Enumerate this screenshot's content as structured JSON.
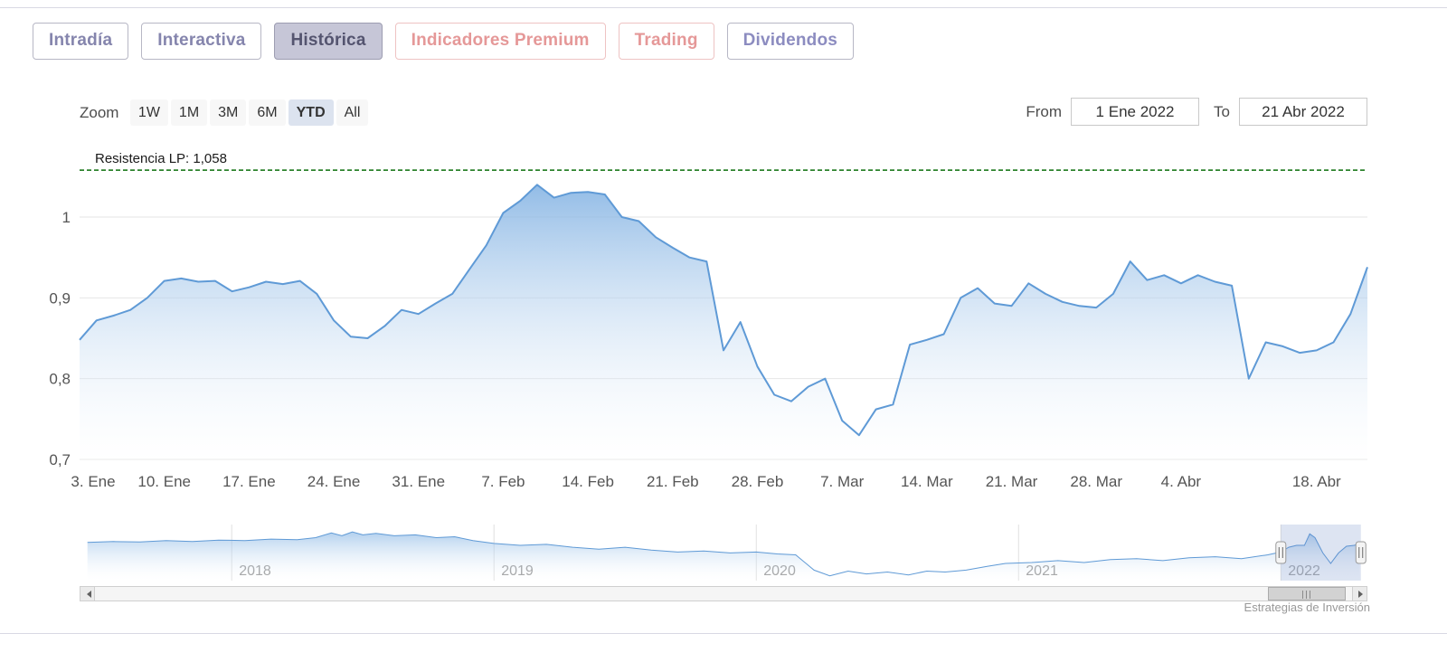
{
  "tabs": {
    "intradia": "Intradía",
    "interactiva": "Interactiva",
    "historica": "Histórica",
    "premium": "Indicadores Premium",
    "trading": "Trading",
    "dividendos": "Dividendos"
  },
  "toolbar": {
    "zoom_label": "Zoom",
    "zoom_buttons": [
      "1W",
      "1M",
      "3M",
      "6M",
      "YTD",
      "All"
    ],
    "zoom_selected": "YTD",
    "from_label": "From",
    "from_value": "1 Ene 2022",
    "to_label": "To",
    "to_value": "21 Abr 2022"
  },
  "chart_data": {
    "type": "area",
    "title": "",
    "xlabel": "",
    "ylabel": "",
    "grid": "horizontal",
    "legend": "off",
    "x_tick_labels": [
      "3. Ene",
      "10. Ene",
      "17. Ene",
      "24. Ene",
      "31. Ene",
      "7. Feb",
      "14. Feb",
      "21. Feb",
      "28. Feb",
      "7. Mar",
      "14. Mar",
      "21. Mar",
      "28. Mar",
      "4. Abr",
      "18. Abr"
    ],
    "x_tick_indices": [
      0,
      5,
      10,
      15,
      20,
      25,
      30,
      35,
      40,
      45,
      50,
      55,
      60,
      65,
      73
    ],
    "y_tick_values": [
      0.7,
      0.8,
      0.9,
      1
    ],
    "y_tick_labels": [
      "0,7",
      "0,8",
      "0,9",
      "1"
    ],
    "ylim": [
      0.69,
      1.08
    ],
    "annotation": {
      "label": "Resistencia LP: 1,058",
      "value": 1.058,
      "color": "#0a6e0a",
      "style": "dashed"
    },
    "line_color": "#5f9ad6",
    "fill_top_color": "#7fb0e2",
    "values": [
      0.848,
      0.872,
      0.878,
      0.885,
      0.9,
      0.921,
      0.924,
      0.92,
      0.921,
      0.908,
      0.913,
      0.92,
      0.917,
      0.921,
      0.905,
      0.872,
      0.852,
      0.85,
      0.865,
      0.885,
      0.88,
      0.893,
      0.905,
      0.935,
      0.965,
      1.005,
      1.02,
      1.04,
      1.024,
      1.03,
      1.031,
      1.028,
      1.0,
      0.995,
      0.975,
      0.962,
      0.95,
      0.945,
      0.835,
      0.87,
      0.815,
      0.78,
      0.772,
      0.79,
      0.8,
      0.748,
      0.73,
      0.762,
      0.768,
      0.842,
      0.848,
      0.855,
      0.9,
      0.912,
      0.893,
      0.89,
      0.918,
      0.905,
      0.895,
      0.89,
      0.888,
      0.905,
      0.945,
      0.922,
      0.928,
      0.918,
      0.928,
      0.92,
      0.915,
      0.8,
      0.845,
      0.84,
      0.832,
      0.835,
      0.845,
      0.88,
      0.938
    ]
  },
  "navigator": {
    "type": "area",
    "year_labels": [
      "2018",
      "2019",
      "2020",
      "2021",
      "2022"
    ],
    "year_values": [
      2018,
      2019,
      2020,
      2021,
      2022
    ],
    "xlim": [
      2017.42,
      2022.33
    ],
    "vlim": [
      0.55,
      1.1
    ],
    "selected_range": [
      2022.0,
      2022.305
    ],
    "points": [
      [
        2017.45,
        0.95
      ],
      [
        2017.55,
        0.96
      ],
      [
        2017.65,
        0.955
      ],
      [
        2017.75,
        0.97
      ],
      [
        2017.85,
        0.96
      ],
      [
        2017.95,
        0.975
      ],
      [
        2018.05,
        0.97
      ],
      [
        2018.15,
        0.985
      ],
      [
        2018.25,
        0.98
      ],
      [
        2018.32,
        1.0
      ],
      [
        2018.38,
        1.05
      ],
      [
        2018.42,
        1.02
      ],
      [
        2018.46,
        1.06
      ],
      [
        2018.5,
        1.03
      ],
      [
        2018.55,
        1.045
      ],
      [
        2018.62,
        1.02
      ],
      [
        2018.7,
        1.03
      ],
      [
        2018.78,
        1.0
      ],
      [
        2018.85,
        1.01
      ],
      [
        2018.92,
        0.97
      ],
      [
        2019.0,
        0.94
      ],
      [
        2019.1,
        0.92
      ],
      [
        2019.2,
        0.93
      ],
      [
        2019.3,
        0.9
      ],
      [
        2019.4,
        0.88
      ],
      [
        2019.5,
        0.9
      ],
      [
        2019.6,
        0.87
      ],
      [
        2019.7,
        0.85
      ],
      [
        2019.8,
        0.86
      ],
      [
        2019.9,
        0.84
      ],
      [
        2020.0,
        0.85
      ],
      [
        2020.08,
        0.83
      ],
      [
        2020.15,
        0.82
      ],
      [
        2020.22,
        0.66
      ],
      [
        2020.28,
        0.6
      ],
      [
        2020.35,
        0.65
      ],
      [
        2020.42,
        0.62
      ],
      [
        2020.5,
        0.64
      ],
      [
        2020.58,
        0.61
      ],
      [
        2020.65,
        0.65
      ],
      [
        2020.72,
        0.64
      ],
      [
        2020.8,
        0.66
      ],
      [
        2020.88,
        0.7
      ],
      [
        2020.95,
        0.73
      ],
      [
        2021.05,
        0.74
      ],
      [
        2021.15,
        0.76
      ],
      [
        2021.25,
        0.74
      ],
      [
        2021.35,
        0.77
      ],
      [
        2021.45,
        0.78
      ],
      [
        2021.55,
        0.76
      ],
      [
        2021.65,
        0.79
      ],
      [
        2021.75,
        0.8
      ],
      [
        2021.85,
        0.78
      ],
      [
        2021.95,
        0.82
      ],
      [
        2022.0,
        0.85
      ],
      [
        2022.03,
        0.9
      ],
      [
        2022.06,
        0.92
      ],
      [
        2022.09,
        0.92
      ],
      [
        2022.11,
        1.04
      ],
      [
        2022.13,
        1.0
      ],
      [
        2022.16,
        0.84
      ],
      [
        2022.19,
        0.73
      ],
      [
        2022.22,
        0.84
      ],
      [
        2022.25,
        0.91
      ],
      [
        2022.28,
        0.92
      ],
      [
        2022.3,
        0.94
      ]
    ]
  },
  "scrollbar": {
    "left_arrow": "left",
    "right_arrow": "right"
  },
  "credit": "Estrategias de Inversión",
  "colors": {
    "tab_text": "#8585ad",
    "tab_selected_bg": "#c6c6d7",
    "premium_text": "#e59898",
    "dividendos_text": "#8c8cc0",
    "line": "#5f9ad6",
    "resistance": "#0a6e0a",
    "axis_text": "#555555",
    "navigator_year_text": "#9a9a9a"
  }
}
